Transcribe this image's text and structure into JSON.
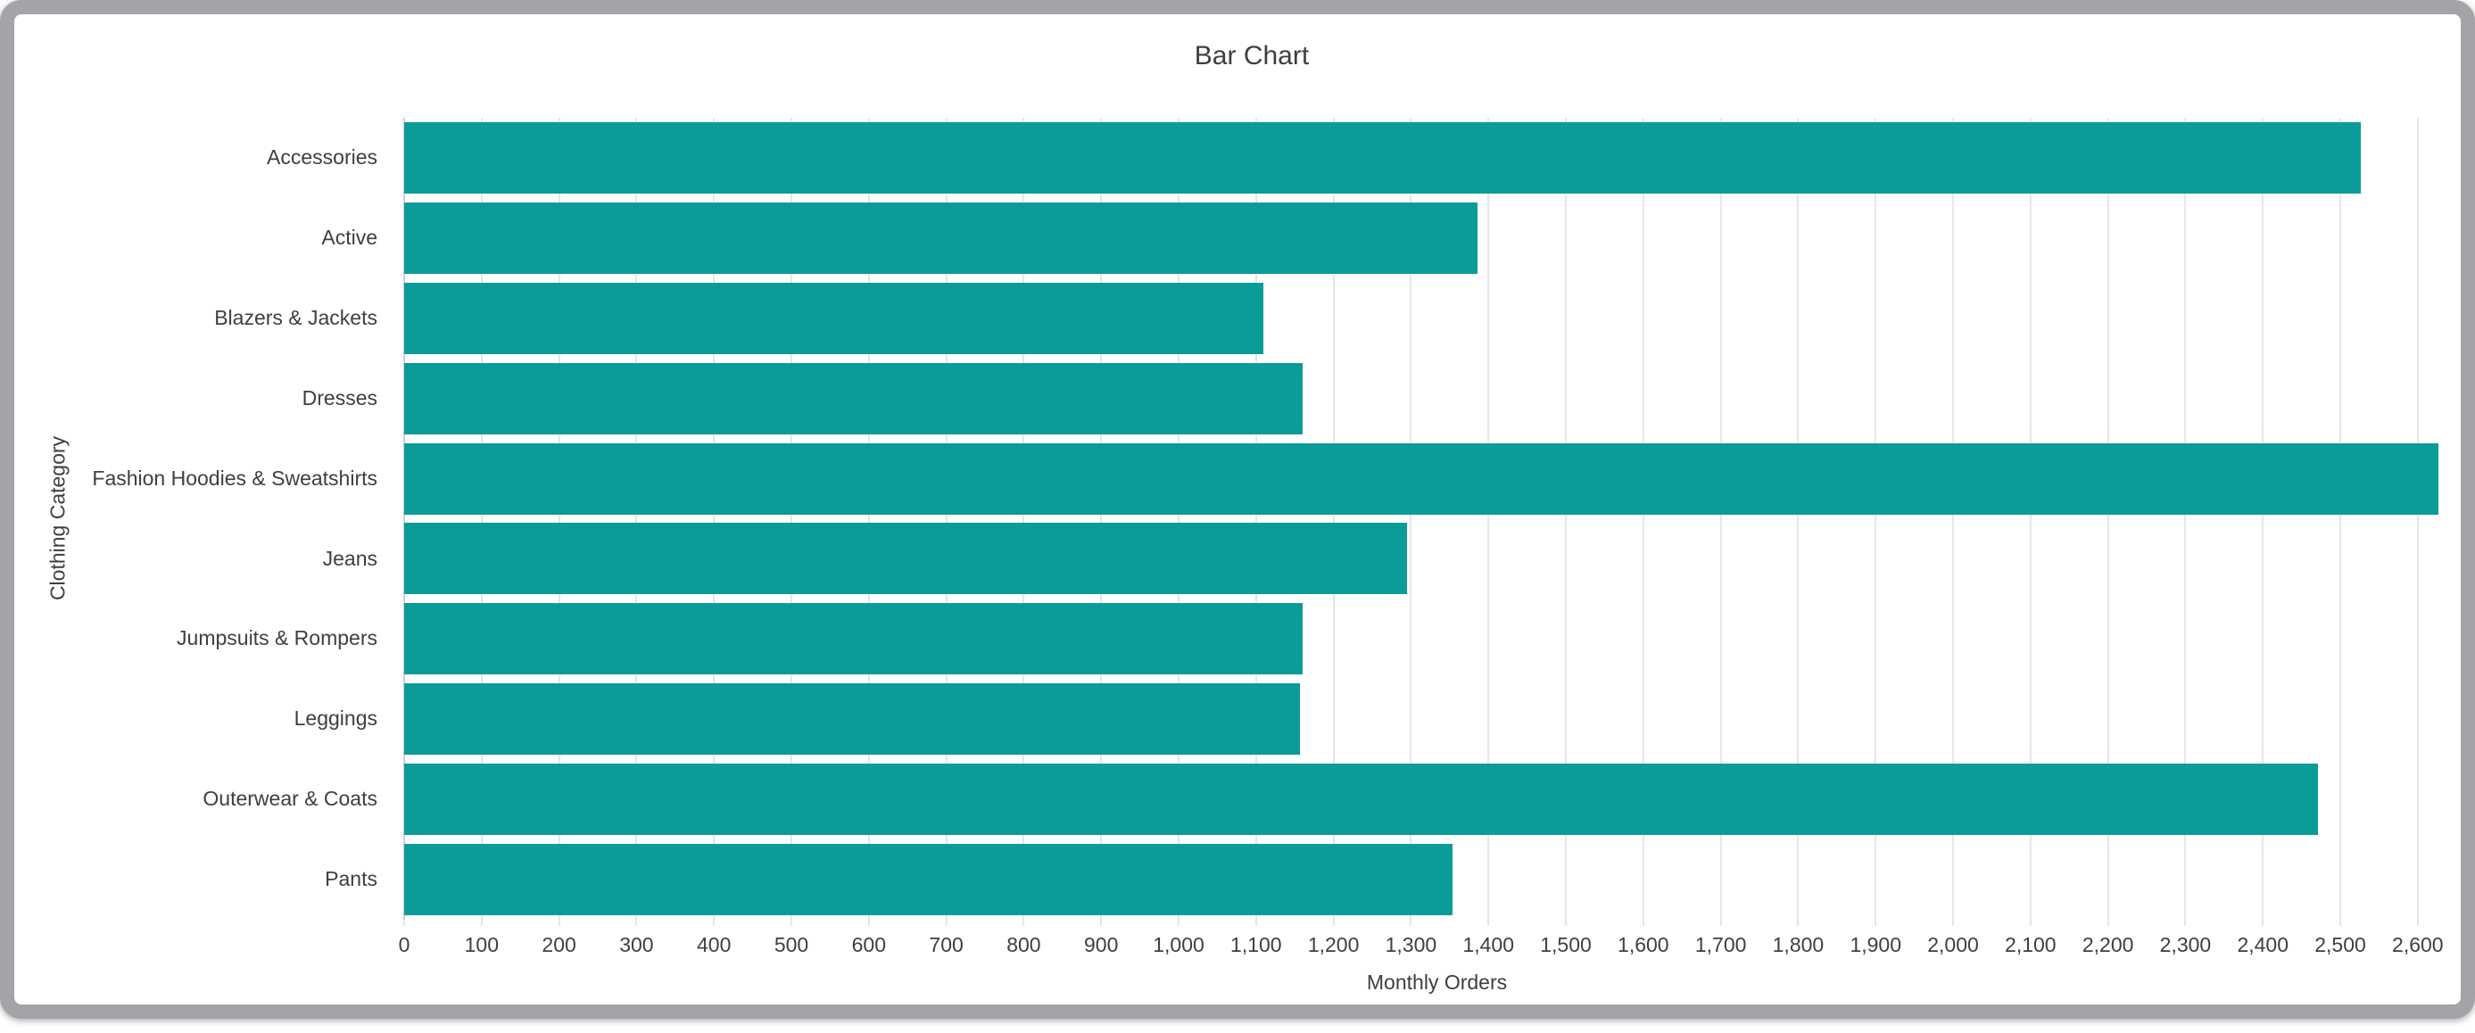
{
  "chart_data": {
    "type": "bar",
    "orientation": "horizontal",
    "title": "Bar Chart",
    "xlabel": "Monthly Orders",
    "ylabel": "Clothing Category",
    "categories": [
      "Accessories",
      "Active",
      "Blazers & Jackets",
      "Dresses",
      "Fashion Hoodies & Sweatshirts",
      "Jeans",
      "Jumpsuits & Rompers",
      "Leggings",
      "Outerwear & Coats",
      "Pants"
    ],
    "values": [
      2526,
      1386,
      1110,
      1160,
      2627,
      1295,
      1160,
      1157,
      2471,
      1354
    ],
    "xlim": [
      0,
      2667
    ],
    "x_tick_labels": [
      "0",
      "100",
      "200",
      "300",
      "400",
      "500",
      "600",
      "700",
      "800",
      "900",
      "1,000",
      "1,100",
      "1,200",
      "1,300",
      "1,400",
      "1,500",
      "1,600",
      "1,700",
      "1,800",
      "1,900",
      "2,000",
      "2,100",
      "2,200",
      "2,300",
      "2,400",
      "2,500",
      "2,600"
    ],
    "grid": true,
    "legend": "none",
    "colors": {
      "bar": "#0a9c98",
      "gridline": "#e6e6e6",
      "baseline": "#ccd0d3",
      "text": "#3c4043",
      "frame": "#a2a4a7"
    }
  }
}
